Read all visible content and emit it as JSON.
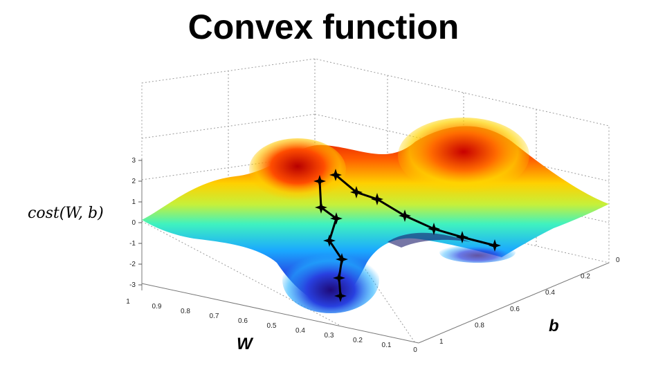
{
  "slide": {
    "title": "Convex function"
  },
  "chart_data": {
    "type": "surface",
    "zlabel": "cost(W, b)",
    "xlabel": "W",
    "ylabel": "b",
    "z_ticks": [
      "3",
      "2",
      "1",
      "0",
      "-1",
      "-2",
      "-3"
    ],
    "w_ticks": [
      "1",
      "0.9",
      "0.8",
      "0.7",
      "0.6",
      "0.5",
      "0.4",
      "0.3",
      "0.2",
      "0.1",
      "0"
    ],
    "b_ticks": [
      "0",
      "0.2",
      "0.4",
      "0.6",
      "0.8",
      "1"
    ],
    "zlim": [
      -3,
      3
    ],
    "wlim": [
      1,
      0
    ],
    "blim": [
      0,
      1
    ],
    "grid": true,
    "colormap": "jet",
    "colors": {
      "path": "#000000",
      "grid": "#9a9a9a"
    },
    "descent_paths": [
      {
        "points": [
          [
            0.37,
            0.25,
            2.2
          ],
          [
            0.36,
            0.28,
            1.5
          ],
          [
            0.34,
            0.3,
            1.2
          ],
          [
            0.3,
            0.36,
            0.4
          ],
          [
            0.26,
            0.42,
            -0.3
          ],
          [
            0.21,
            0.49,
            -0.7
          ],
          [
            0.17,
            0.58,
            -1.2
          ]
        ]
      },
      {
        "points": [
          [
            0.41,
            0.25,
            1.9
          ],
          [
            0.41,
            0.24,
            0.9
          ],
          [
            0.38,
            0.24,
            0.3
          ],
          [
            0.4,
            0.23,
            -0.9
          ],
          [
            0.38,
            0.22,
            -1.7
          ],
          [
            0.38,
            0.21,
            -2.6
          ],
          [
            0.37,
            0.2,
            -3.0
          ]
        ]
      }
    ]
  }
}
